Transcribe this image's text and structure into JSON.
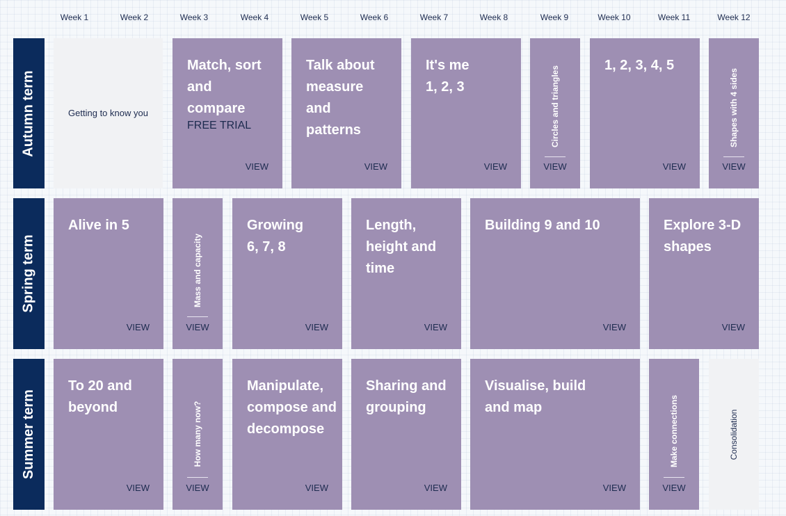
{
  "weeks": [
    "Week 1",
    "Week 2",
    "Week 3",
    "Week 4",
    "Week 5",
    "Week 6",
    "Week 7",
    "Week 8",
    "Week 9",
    "Week 10",
    "Week 11",
    "Week 12"
  ],
  "terms": [
    "Autumn term",
    "Spring term",
    "Summer term"
  ],
  "view_label": "VIEW",
  "autumn": {
    "getting_to_know": "Getting to know you",
    "match_title": "Match, sort and compare",
    "match_sub": "FREE TRIAL",
    "talk": "Talk about measure and patterns",
    "its_me": "It's me 1, 2, 3",
    "circles": "Circles and triangles",
    "one_to_five": "1, 2, 3, 4, 5",
    "shapes4": "Shapes with 4 sides"
  },
  "spring": {
    "alive": "Alive in 5",
    "mass": "Mass and capacity",
    "growing": "Growing 6, 7, 8",
    "length": "Length, height and time",
    "building": "Building 9 and 10",
    "explore": "Explore 3-D shapes"
  },
  "summer": {
    "to20": "To 20 and beyond",
    "how_many": "How many now?",
    "manipulate": "Manipulate, compose and decompose",
    "sharing": "Sharing and grouping",
    "visualise": "Visualise, build and map",
    "connections": "Make connections",
    "consolidation": "Consolidation"
  },
  "colors": {
    "card": "#9e8fb3",
    "term": "#0b2b5c",
    "grey": "#f1f2f4",
    "text_dark": "#1d2b4f"
  }
}
